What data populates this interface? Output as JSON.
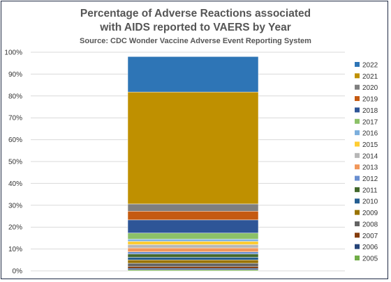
{
  "chart_data": {
    "type": "bar",
    "stacked": true,
    "title_lines": [
      "Percentage of Adverse Reactions associated",
      "with AIDS reported to VAERS by Year"
    ],
    "subtitle": "Source: CDC Wonder Vaccine Adverse Event Reporting System",
    "xlabel": "",
    "ylabel": "",
    "ylim": [
      0,
      100
    ],
    "y_ticks": [
      "0%",
      "10%",
      "20%",
      "30%",
      "40%",
      "50%",
      "60%",
      "70%",
      "80%",
      "90%",
      "100%"
    ],
    "grid": true,
    "legend_position": "right",
    "series": [
      {
        "name": "2005",
        "value": 0.5,
        "color": "#70ad47"
      },
      {
        "name": "2006",
        "value": 0.7,
        "color": "#264478"
      },
      {
        "name": "2007",
        "value": 0.8,
        "color": "#843c0c"
      },
      {
        "name": "2008",
        "value": 1.5,
        "color": "#636363"
      },
      {
        "name": "2009",
        "value": 1.5,
        "color": "#997300"
      },
      {
        "name": "2010",
        "value": 1.2,
        "color": "#255e91"
      },
      {
        "name": "2011",
        "value": 1.5,
        "color": "#43682b"
      },
      {
        "name": "2012",
        "value": 1.0,
        "color": "#698ed0"
      },
      {
        "name": "2013",
        "value": 1.8,
        "color": "#f1975a"
      },
      {
        "name": "2014",
        "value": 1.5,
        "color": "#b7b7b7"
      },
      {
        "name": "2015",
        "value": 1.5,
        "color": "#ffcd33"
      },
      {
        "name": "2016",
        "value": 1.0,
        "color": "#7cafdd"
      },
      {
        "name": "2017",
        "value": 2.8,
        "color": "#8cc168"
      },
      {
        "name": "2018",
        "value": 6.0,
        "color": "#2e5597"
      },
      {
        "name": "2019",
        "value": 4.0,
        "color": "#c55a11"
      },
      {
        "name": "2020",
        "value": 3.3,
        "color": "#7f7f7f"
      },
      {
        "name": "2021",
        "value": 51.2,
        "color": "#bf9000"
      },
      {
        "name": "2022",
        "value": 16.2,
        "color": "#2e75b6"
      }
    ]
  }
}
